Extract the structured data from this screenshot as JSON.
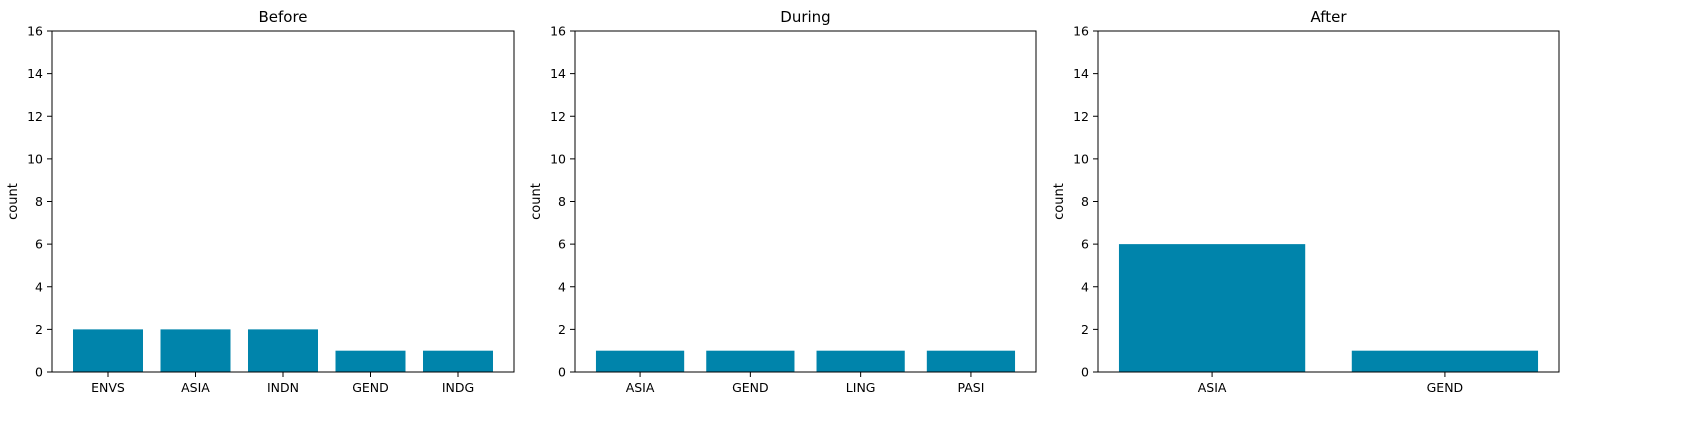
{
  "chart_data": [
    {
      "type": "bar",
      "title": "Before",
      "xlabel": "",
      "ylabel": "count",
      "categories": [
        "ENVS",
        "ASIA",
        "INDN",
        "GEND",
        "INDG"
      ],
      "values": [
        2,
        2,
        2,
        1,
        1
      ],
      "ylim": [
        0,
        16
      ],
      "yticks": [
        0,
        2,
        4,
        6,
        8,
        10,
        12,
        14,
        16
      ],
      "grid": false
    },
    {
      "type": "bar",
      "title": "During",
      "xlabel": "",
      "ylabel": "count",
      "categories": [
        "ASIA",
        "GEND",
        "LING",
        "PASI"
      ],
      "values": [
        1,
        1,
        1,
        1
      ],
      "ylim": [
        0,
        16
      ],
      "yticks": [
        0,
        2,
        4,
        6,
        8,
        10,
        12,
        14,
        16
      ],
      "grid": false
    },
    {
      "type": "bar",
      "title": "After",
      "xlabel": "",
      "ylabel": "count",
      "categories": [
        "ASIA",
        "GEND"
      ],
      "values": [
        6,
        1
      ],
      "ylim": [
        0,
        16
      ],
      "yticks": [
        0,
        2,
        4,
        6,
        8,
        10,
        12,
        14,
        16
      ],
      "grid": false
    }
  ],
  "colors": {
    "bar": "#0084ab"
  }
}
